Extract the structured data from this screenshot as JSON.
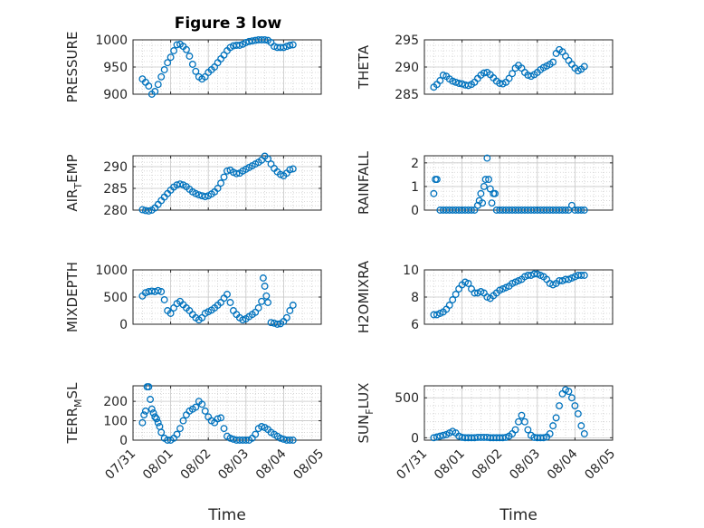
{
  "figure": {
    "title": "Figure 3 low",
    "marker_color": "#0072BD",
    "axis_color": "#262626"
  },
  "chart_data": [
    {
      "type": "scatter",
      "title": "Figure 3 low",
      "ylabel": "PRESSURE",
      "ylabel_main": "PRESSURE",
      "ylabel_sub": "",
      "ylabel_rest": "",
      "xlabel": "",
      "xlim": [
        "07/31",
        "08/05"
      ],
      "ylim": [
        900,
        1000
      ],
      "yticks": [
        900,
        950,
        1000
      ],
      "grid": true,
      "x": [
        "07/31 06:00",
        "07/31 08:00",
        "07/31 10:00",
        "07/31 12:00",
        "07/31 14:00",
        "07/31 16:00",
        "07/31 18:00",
        "07/31 20:00",
        "07/31 22:00",
        "08/01 00:00",
        "08/01 02:00",
        "08/01 04:00",
        "08/01 06:00",
        "08/01 08:00",
        "08/01 10:00",
        "08/01 12:00",
        "08/01 14:00",
        "08/01 16:00",
        "08/01 18:00",
        "08/01 20:00",
        "08/01 22:00",
        "08/02 00:00",
        "08/02 02:00",
        "08/02 04:00",
        "08/02 06:00",
        "08/02 08:00",
        "08/02 10:00",
        "08/02 12:00",
        "08/02 14:00",
        "08/02 16:00",
        "08/02 18:00",
        "08/02 20:00",
        "08/02 22:00",
        "08/03 00:00",
        "08/03 02:00",
        "08/03 04:00",
        "08/03 06:00",
        "08/03 08:00",
        "08/03 10:00",
        "08/03 12:00",
        "08/03 14:00",
        "08/03 16:00",
        "08/03 18:00",
        "08/03 20:00",
        "08/03 22:00",
        "08/04 00:00",
        "08/04 02:00",
        "08/04 04:00",
        "08/04 06:00"
      ],
      "y": [
        928,
        922,
        915,
        900,
        905,
        918,
        932,
        945,
        958,
        968,
        980,
        991,
        992,
        988,
        982,
        970,
        955,
        942,
        932,
        928,
        932,
        940,
        945,
        950,
        958,
        965,
        972,
        980,
        986,
        989,
        990,
        990,
        992,
        995,
        997,
        998,
        999,
        1000,
        1000,
        1000,
        999,
        995,
        988,
        986,
        986,
        986,
        988,
        990,
        991
      ]
    },
    {
      "type": "scatter",
      "ylabel": "THETA",
      "ylabel_main": "THETA",
      "ylabel_sub": "",
      "ylabel_rest": "",
      "xlabel": "",
      "xlim": [
        "07/31",
        "08/05"
      ],
      "ylim": [
        285,
        295
      ],
      "yticks": [
        285,
        290,
        295
      ],
      "grid": true,
      "x": [
        "07/31 06:00",
        "07/31 08:00",
        "07/31 10:00",
        "07/31 12:00",
        "07/31 14:00",
        "07/31 16:00",
        "07/31 18:00",
        "07/31 20:00",
        "07/31 22:00",
        "08/01 00:00",
        "08/01 02:00",
        "08/01 04:00",
        "08/01 06:00",
        "08/01 08:00",
        "08/01 10:00",
        "08/01 12:00",
        "08/01 14:00",
        "08/01 16:00",
        "08/01 18:00",
        "08/01 20:00",
        "08/01 22:00",
        "08/02 00:00",
        "08/02 02:00",
        "08/02 04:00",
        "08/02 06:00",
        "08/02 08:00",
        "08/02 10:00",
        "08/02 12:00",
        "08/02 14:00",
        "08/02 16:00",
        "08/02 18:00",
        "08/02 20:00",
        "08/02 22:00",
        "08/03 00:00",
        "08/03 02:00",
        "08/03 04:00",
        "08/03 06:00",
        "08/03 08:00",
        "08/03 10:00",
        "08/03 12:00",
        "08/03 14:00",
        "08/03 16:00",
        "08/03 18:00",
        "08/03 20:00",
        "08/03 22:00",
        "08/04 00:00",
        "08/04 02:00",
        "08/04 04:00",
        "08/04 06:00"
      ],
      "y": [
        286.3,
        286.8,
        287.5,
        288.5,
        288.3,
        287.8,
        287.4,
        287.2,
        287.0,
        286.9,
        286.7,
        286.6,
        286.8,
        287.2,
        287.9,
        288.5,
        288.9,
        289.0,
        288.6,
        288.0,
        287.4,
        287.0,
        286.9,
        287.2,
        287.9,
        288.8,
        289.8,
        290.3,
        289.8,
        289.0,
        288.5,
        288.3,
        288.6,
        289.0,
        289.5,
        289.9,
        290.2,
        290.5,
        290.9,
        292.5,
        293.2,
        292.8,
        292.0,
        291.2,
        290.5,
        289.8,
        289.3,
        289.6,
        290.1
      ]
    },
    {
      "type": "scatter",
      "ylabel": "AIR_TEMP",
      "ylabel_main": "AIR",
      "ylabel_sub": "T",
      "ylabel_rest": "EMP",
      "xlabel": "",
      "xlim": [
        "07/31",
        "08/05"
      ],
      "ylim": [
        280,
        292.5
      ],
      "yticks": [
        280,
        285,
        290
      ],
      "grid": true,
      "x": [
        "07/31 06:00",
        "07/31 08:00",
        "07/31 10:00",
        "07/31 12:00",
        "07/31 14:00",
        "07/31 16:00",
        "07/31 18:00",
        "07/31 20:00",
        "07/31 22:00",
        "08/01 00:00",
        "08/01 02:00",
        "08/01 04:00",
        "08/01 06:00",
        "08/01 08:00",
        "08/01 10:00",
        "08/01 12:00",
        "08/01 14:00",
        "08/01 16:00",
        "08/01 18:00",
        "08/01 20:00",
        "08/01 22:00",
        "08/02 00:00",
        "08/02 02:00",
        "08/02 04:00",
        "08/02 06:00",
        "08/02 08:00",
        "08/02 10:00",
        "08/02 12:00",
        "08/02 14:00",
        "08/02 16:00",
        "08/02 18:00",
        "08/02 20:00",
        "08/02 22:00",
        "08/03 00:00",
        "08/03 02:00",
        "08/03 04:00",
        "08/03 06:00",
        "08/03 08:00",
        "08/03 10:00",
        "08/03 12:00",
        "08/03 14:00",
        "08/03 16:00",
        "08/03 18:00",
        "08/03 20:00",
        "08/03 22:00",
        "08/04 00:00",
        "08/04 02:00",
        "08/04 04:00",
        "08/04 06:00"
      ],
      "y": [
        280.1,
        279.9,
        279.8,
        280.0,
        280.5,
        281.3,
        282.2,
        283.0,
        283.8,
        284.6,
        285.3,
        285.8,
        286.0,
        285.8,
        285.4,
        284.8,
        284.2,
        283.8,
        283.5,
        283.3,
        283.1,
        283.3,
        283.7,
        284.2,
        285.0,
        286.2,
        287.6,
        289.0,
        289.2,
        288.7,
        288.4,
        288.5,
        289.0,
        289.4,
        289.8,
        290.2,
        290.6,
        291.0,
        291.5,
        292.4,
        291.8,
        290.6,
        289.6,
        288.8,
        288.2,
        287.9,
        288.5,
        289.3,
        289.5
      ]
    },
    {
      "type": "scatter",
      "ylabel": "RAINFALL",
      "ylabel_main": "RAINFALL",
      "ylabel_sub": "",
      "ylabel_rest": "",
      "xlabel": "",
      "xlim": [
        "07/31",
        "08/05"
      ],
      "ylim": [
        0,
        2.3
      ],
      "yticks": [
        0,
        1,
        2
      ],
      "grid": true,
      "x": [
        "07/31 06:00",
        "07/31 07:00",
        "07/31 08:00",
        "07/31 10:00",
        "07/31 12:00",
        "07/31 14:00",
        "07/31 16:00",
        "07/31 18:00",
        "07/31 20:00",
        "07/31 22:00",
        "08/01 00:00",
        "08/01 02:00",
        "08/01 04:00",
        "08/01 06:00",
        "08/01 08:00",
        "08/01 10:00",
        "08/01 11:00",
        "08/01 12:00",
        "08/01 13:00",
        "08/01 14:00",
        "08/01 15:00",
        "08/01 16:00",
        "08/01 17:00",
        "08/01 18:00",
        "08/01 19:00",
        "08/01 20:00",
        "08/01 21:00",
        "08/01 22:00",
        "08/02 00:00",
        "08/02 02:00",
        "08/02 04:00",
        "08/02 06:00",
        "08/02 08:00",
        "08/02 10:00",
        "08/02 12:00",
        "08/02 14:00",
        "08/02 16:00",
        "08/02 18:00",
        "08/02 20:00",
        "08/02 22:00",
        "08/03 00:00",
        "08/03 02:00",
        "08/03 04:00",
        "08/03 06:00",
        "08/03 08:00",
        "08/03 10:00",
        "08/03 12:00",
        "08/03 14:00",
        "08/03 16:00",
        "08/03 18:00",
        "08/03 20:00",
        "08/03 22:00",
        "08/04 00:00",
        "08/04 02:00",
        "08/04 04:00",
        "08/04 06:00"
      ],
      "y": [
        0.7,
        1.3,
        1.3,
        0,
        0,
        0,
        0,
        0,
        0,
        0,
        0,
        0,
        0,
        0,
        0,
        0.2,
        0.4,
        0.7,
        0.3,
        1.0,
        1.3,
        2.2,
        1.3,
        0.9,
        0.3,
        0.7,
        0.7,
        0,
        0,
        0,
        0,
        0,
        0,
        0,
        0,
        0,
        0,
        0,
        0,
        0,
        0,
        0,
        0,
        0,
        0,
        0,
        0,
        0,
        0,
        0,
        0,
        0.2,
        0,
        0,
        0,
        0
      ]
    },
    {
      "type": "scatter",
      "ylabel": "MIXDEPTH",
      "ylabel_main": "MIXDEPTH",
      "ylabel_sub": "",
      "ylabel_rest": "",
      "xlabel": "",
      "xlim": [
        "07/31",
        "08/05"
      ],
      "ylim": [
        0,
        1000
      ],
      "yticks": [
        0,
        500,
        1000
      ],
      "grid": true,
      "x": [
        "07/31 06:00",
        "07/31 08:00",
        "07/31 10:00",
        "07/31 12:00",
        "07/31 14:00",
        "07/31 16:00",
        "07/31 18:00",
        "07/31 20:00",
        "07/31 22:00",
        "08/01 00:00",
        "08/01 02:00",
        "08/01 04:00",
        "08/01 06:00",
        "08/01 08:00",
        "08/01 10:00",
        "08/01 12:00",
        "08/01 14:00",
        "08/01 16:00",
        "08/01 18:00",
        "08/01 20:00",
        "08/01 22:00",
        "08/02 00:00",
        "08/02 02:00",
        "08/02 04:00",
        "08/02 06:00",
        "08/02 08:00",
        "08/02 10:00",
        "08/02 12:00",
        "08/02 14:00",
        "08/02 16:00",
        "08/02 18:00",
        "08/02 20:00",
        "08/02 22:00",
        "08/03 00:00",
        "08/03 02:00",
        "08/03 04:00",
        "08/03 06:00",
        "08/03 08:00",
        "08/03 10:00",
        "08/03 11:00",
        "08/03 12:00",
        "08/03 13:00",
        "08/03 14:00",
        "08/03 16:00",
        "08/03 18:00",
        "08/03 20:00",
        "08/03 22:00",
        "08/04 00:00",
        "08/04 02:00",
        "08/04 04:00",
        "08/04 06:00"
      ],
      "y": [
        520,
        580,
        600,
        610,
        600,
        620,
        600,
        450,
        250,
        200,
        300,
        380,
        420,
        360,
        300,
        250,
        180,
        120,
        80,
        120,
        200,
        230,
        260,
        300,
        350,
        400,
        480,
        550,
        400,
        250,
        180,
        120,
        80,
        100,
        140,
        180,
        220,
        300,
        420,
        850,
        700,
        520,
        400,
        30,
        20,
        0,
        10,
        50,
        120,
        250,
        350
      ]
    },
    {
      "type": "scatter",
      "ylabel": "H2OMIXRA",
      "ylabel_main": "H2OMIXRA",
      "ylabel_sub": "",
      "ylabel_rest": "",
      "xlabel": "",
      "xlim": [
        "07/31",
        "08/05"
      ],
      "ylim": [
        6,
        10
      ],
      "yticks": [
        6,
        8,
        10
      ],
      "grid": true,
      "x": [
        "07/31 06:00",
        "07/31 08:00",
        "07/31 10:00",
        "07/31 12:00",
        "07/31 14:00",
        "07/31 16:00",
        "07/31 18:00",
        "07/31 20:00",
        "07/31 22:00",
        "08/01 00:00",
        "08/01 02:00",
        "08/01 04:00",
        "08/01 06:00",
        "08/01 08:00",
        "08/01 10:00",
        "08/01 12:00",
        "08/01 14:00",
        "08/01 16:00",
        "08/01 18:00",
        "08/01 20:00",
        "08/01 22:00",
        "08/02 00:00",
        "08/02 02:00",
        "08/02 04:00",
        "08/02 06:00",
        "08/02 08:00",
        "08/02 10:00",
        "08/02 12:00",
        "08/02 14:00",
        "08/02 16:00",
        "08/02 18:00",
        "08/02 20:00",
        "08/02 22:00",
        "08/03 00:00",
        "08/03 02:00",
        "08/03 04:00",
        "08/03 06:00",
        "08/03 08:00",
        "08/03 10:00",
        "08/03 12:00",
        "08/03 14:00",
        "08/03 16:00",
        "08/03 18:00",
        "08/03 20:00",
        "08/03 22:00",
        "08/04 00:00",
        "08/04 02:00",
        "08/04 04:00",
        "08/04 06:00"
      ],
      "y": [
        6.7,
        6.7,
        6.8,
        6.9,
        7.1,
        7.4,
        7.8,
        8.2,
        8.6,
        8.9,
        9.1,
        9.0,
        8.6,
        8.3,
        8.3,
        8.4,
        8.3,
        8.0,
        7.9,
        8.1,
        8.3,
        8.5,
        8.6,
        8.7,
        8.8,
        9.0,
        9.1,
        9.2,
        9.3,
        9.5,
        9.6,
        9.6,
        9.7,
        9.7,
        9.6,
        9.5,
        9.3,
        9.0,
        8.9,
        9.0,
        9.2,
        9.2,
        9.3,
        9.3,
        9.4,
        9.5,
        9.6,
        9.6,
        9.6
      ]
    },
    {
      "type": "scatter",
      "ylabel": "TERR_MSL",
      "ylabel_main": "TERR",
      "ylabel_sub": "M",
      "ylabel_rest": "SL",
      "xlabel": "Time",
      "xlim": [
        "07/31",
        "08/05"
      ],
      "ylim": [
        0,
        280
      ],
      "yticks": [
        0,
        100,
        200
      ],
      "xticks": [
        "07/31",
        "08/01",
        "08/02",
        "08/03",
        "08/04",
        "08/05"
      ],
      "grid": true,
      "x": [
        "07/31 06:00",
        "07/31 07:00",
        "07/31 08:00",
        "07/31 09:00",
        "07/31 10:00",
        "07/31 11:00",
        "07/31 12:00",
        "07/31 13:00",
        "07/31 14:00",
        "07/31 15:00",
        "07/31 16:00",
        "07/31 17:00",
        "07/31 18:00",
        "07/31 20:00",
        "07/31 22:00",
        "08/01 00:00",
        "08/01 02:00",
        "08/01 04:00",
        "08/01 06:00",
        "08/01 08:00",
        "08/01 10:00",
        "08/01 12:00",
        "08/01 14:00",
        "08/01 16:00",
        "08/01 18:00",
        "08/01 20:00",
        "08/01 22:00",
        "08/02 00:00",
        "08/02 02:00",
        "08/02 04:00",
        "08/02 06:00",
        "08/02 08:00",
        "08/02 10:00",
        "08/02 12:00",
        "08/02 14:00",
        "08/02 16:00",
        "08/02 18:00",
        "08/02 20:00",
        "08/02 22:00",
        "08/03 00:00",
        "08/03 02:00",
        "08/03 04:00",
        "08/03 06:00",
        "08/03 08:00",
        "08/03 10:00",
        "08/03 12:00",
        "08/03 14:00",
        "08/03 16:00",
        "08/03 18:00",
        "08/03 20:00",
        "08/03 22:00",
        "08/04 00:00",
        "08/04 02:00",
        "08/04 04:00",
        "08/04 06:00"
      ],
      "y": [
        90,
        130,
        150,
        275,
        275,
        210,
        160,
        140,
        120,
        110,
        90,
        70,
        40,
        10,
        0,
        0,
        10,
        30,
        60,
        100,
        130,
        150,
        160,
        170,
        200,
        185,
        150,
        120,
        100,
        90,
        110,
        115,
        60,
        20,
        10,
        5,
        0,
        0,
        0,
        0,
        0,
        10,
        30,
        60,
        70,
        65,
        55,
        40,
        30,
        20,
        10,
        5,
        0,
        0,
        0
      ]
    },
    {
      "type": "scatter",
      "ylabel": "SUN_FLUX",
      "ylabel_main": "SUN",
      "ylabel_sub": "F",
      "ylabel_rest": "LUX",
      "xlabel": "Time",
      "xlim": [
        "07/31",
        "08/05"
      ],
      "ylim": [
        -30,
        650
      ],
      "yticks": [
        0,
        500
      ],
      "xticks": [
        "07/31",
        "08/01",
        "08/02",
        "08/03",
        "08/04",
        "08/05"
      ],
      "grid": true,
      "x": [
        "07/31 06:00",
        "07/31 08:00",
        "07/31 10:00",
        "07/31 12:00",
        "07/31 14:00",
        "07/31 16:00",
        "07/31 18:00",
        "07/31 20:00",
        "07/31 22:00",
        "08/01 00:00",
        "08/01 02:00",
        "08/01 04:00",
        "08/01 06:00",
        "08/01 08:00",
        "08/01 10:00",
        "08/01 12:00",
        "08/01 14:00",
        "08/01 16:00",
        "08/01 18:00",
        "08/01 20:00",
        "08/01 22:00",
        "08/02 00:00",
        "08/02 02:00",
        "08/02 04:00",
        "08/02 06:00",
        "08/02 08:00",
        "08/02 10:00",
        "08/02 12:00",
        "08/02 14:00",
        "08/02 16:00",
        "08/02 18:00",
        "08/02 20:00",
        "08/02 22:00",
        "08/03 00:00",
        "08/03 02:00",
        "08/03 04:00",
        "08/03 06:00",
        "08/03 08:00",
        "08/03 10:00",
        "08/03 12:00",
        "08/03 14:00",
        "08/03 16:00",
        "08/03 18:00",
        "08/03 20:00",
        "08/03 22:00",
        "08/04 00:00",
        "08/04 02:00",
        "08/04 04:00",
        "08/04 06:00"
      ],
      "y": [
        0,
        10,
        20,
        30,
        40,
        60,
        80,
        60,
        20,
        5,
        0,
        0,
        0,
        0,
        5,
        5,
        5,
        5,
        0,
        0,
        0,
        0,
        0,
        5,
        20,
        50,
        100,
        200,
        280,
        200,
        100,
        30,
        5,
        0,
        0,
        0,
        10,
        50,
        150,
        250,
        400,
        550,
        600,
        580,
        500,
        400,
        300,
        150,
        50
      ]
    }
  ]
}
